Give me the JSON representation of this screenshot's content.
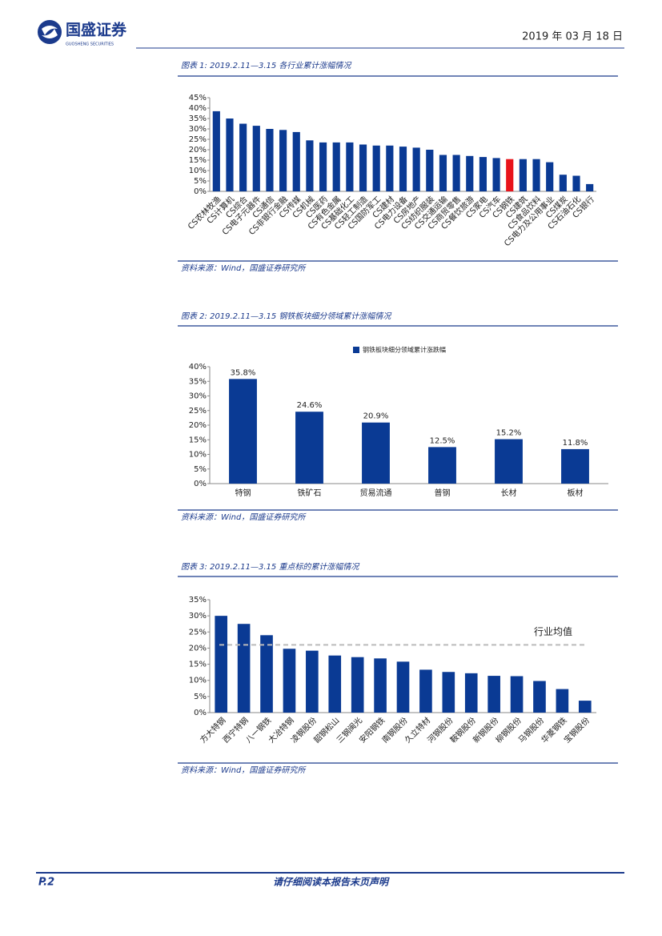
{
  "header": {
    "logo": "国盛证券",
    "logo_sub": "GUOSHENG SECURITIES",
    "date": "2019 年 03 月 18 日"
  },
  "chart_data": [
    {
      "type": "bar",
      "title": "图表 1:  2019.2.11—3.15 各行业累计涨幅情况",
      "source": "资料来源：Wind，国盛证券研究所",
      "categories": [
        "CS农林牧渔",
        "CS计算机",
        "CS综合",
        "CS电子元器件",
        "CS通信",
        "CS非银行金融",
        "CS传媒",
        "CS机械",
        "CS医药",
        "CS有色金属",
        "CS基础化工",
        "CS轻工制造",
        "CS国防军工",
        "CS建材",
        "CS电力设备",
        "CS房地产",
        "CS纺织服装",
        "CS交通运输",
        "CS商贸零售",
        "CS餐饮旅游",
        "CS家电",
        "CS汽车",
        "CS钢铁",
        "CS建筑",
        "CS食品饮料",
        "CS电力及公用事业",
        "CS煤炭",
        "CS石油石化",
        "CS银行"
      ],
      "values": [
        38.5,
        35,
        32.5,
        31.5,
        30,
        29.5,
        28.5,
        24.5,
        23.5,
        23.5,
        23.5,
        22.5,
        22,
        22,
        21.5,
        21,
        20,
        17.5,
        17.5,
        17,
        16.5,
        16,
        15.5,
        15.5,
        15.5,
        14,
        8,
        7.5,
        3.5
      ],
      "colors": [
        "#0a3a94",
        "#0a3a94",
        "#0a3a94",
        "#0a3a94",
        "#0a3a94",
        "#0a3a94",
        "#0a3a94",
        "#0a3a94",
        "#0a3a94",
        "#0a3a94",
        "#0a3a94",
        "#0a3a94",
        "#0a3a94",
        "#0a3a94",
        "#0a3a94",
        "#0a3a94",
        "#0a3a94",
        "#0a3a94",
        "#0a3a94",
        "#0a3a94",
        "#0a3a94",
        "#0a3a94",
        "#e8141c",
        "#0a3a94",
        "#0a3a94",
        "#0a3a94",
        "#0a3a94",
        "#0a3a94",
        "#0a3a94"
      ],
      "ylim": [
        0,
        45
      ],
      "yticks": [
        {
          "value": 0,
          "label": "0%"
        },
        {
          "value": 5,
          "label": "5%"
        },
        {
          "value": 10,
          "label": "10%"
        },
        {
          "value": 15,
          "label": "15%"
        },
        {
          "value": 20,
          "label": "20%"
        },
        {
          "value": 25,
          "label": "25%"
        },
        {
          "value": 30,
          "label": "30%"
        },
        {
          "value": 35,
          "label": "35%"
        },
        {
          "value": 40,
          "label": "40%"
        },
        {
          "value": 45,
          "label": "45%"
        }
      ]
    },
    {
      "type": "bar",
      "title": "图表 2:  2019.2.11—3.15 钢铁板块细分领域累计涨幅情况",
      "source": "资料来源：Wind，国盛证券研究所",
      "legend": "钢铁板块细分领域累计涨跌幅",
      "color": "#0a3a94",
      "categories": [
        "特钢",
        "铁矿石",
        "贸易流通",
        "普钢",
        "长材",
        "板材"
      ],
      "values": [
        35.8,
        24.6,
        20.9,
        12.5,
        15.2,
        11.8
      ],
      "value_labels": [
        "35.8%",
        "24.6%",
        "20.9%",
        "12.5%",
        "15.2%",
        "11.8%"
      ],
      "ylim": [
        0,
        40
      ],
      "yticks": [
        {
          "value": 0,
          "label": "0%"
        },
        {
          "value": 5,
          "label": "5%"
        },
        {
          "value": 10,
          "label": "10%"
        },
        {
          "value": 15,
          "label": "15%"
        },
        {
          "value": 20,
          "label": "20%"
        },
        {
          "value": 25,
          "label": "25%"
        },
        {
          "value": 30,
          "label": "30%"
        },
        {
          "value": 35,
          "label": "35%"
        },
        {
          "value": 40,
          "label": "40%"
        }
      ]
    },
    {
      "type": "bar",
      "title": "图表 3:  2019.2.11—3.15 重点标的累计涨幅情况",
      "source": "资料来源：Wind，国盛证券研究所",
      "color": "#0a3a94",
      "categories": [
        "方大特钢",
        "西宁特钢",
        "八一钢铁",
        "大冶特钢",
        "凌钢股份",
        "韶钢松山",
        "三钢闽光",
        "安阳钢铁",
        "南钢股份",
        "久立特材",
        "河钢股份",
        "鞍钢股份",
        "新钢股份",
        "柳钢股份",
        "马钢股份",
        "华菱钢铁",
        "宝钢股份"
      ],
      "values": [
        30,
        27.5,
        24,
        19.8,
        19.2,
        17.7,
        17.2,
        16.8,
        15.8,
        13.3,
        12.6,
        12.2,
        11.4,
        11.3,
        9.8,
        7.3,
        3.7
      ],
      "reference": {
        "value": 21,
        "label": "行业均值"
      },
      "ylim": [
        0,
        35
      ],
      "yticks": [
        {
          "value": 0,
          "label": "0%"
        },
        {
          "value": 5,
          "label": "5%"
        },
        {
          "value": 10,
          "label": "10%"
        },
        {
          "value": 15,
          "label": "15%"
        },
        {
          "value": 20,
          "label": "20%"
        },
        {
          "value": 25,
          "label": "25%"
        },
        {
          "value": 30,
          "label": "30%"
        },
        {
          "value": 35,
          "label": "35%"
        }
      ]
    }
  ],
  "footer": {
    "page": "P.2",
    "notice": "请仔细阅读本报告末页声明"
  }
}
